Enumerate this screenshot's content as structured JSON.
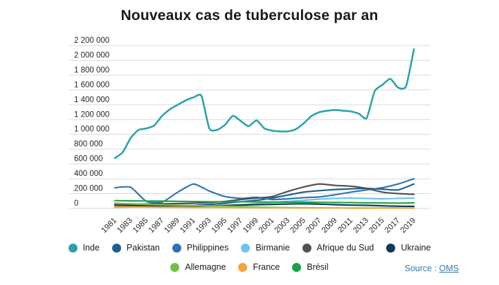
{
  "title": "Nouveaux cas de tuberculose par an",
  "source": {
    "prefix": "Source : ",
    "link_label": "OMS"
  },
  "chart_data": {
    "type": "line",
    "title": "Nouveaux cas de tuberculose par an",
    "xlabel": "",
    "ylabel": "",
    "ylim": [
      0,
      2200000
    ],
    "ytick_step": 200000,
    "ytick_labels": [
      "0",
      "200 000",
      "400 000",
      "600 000",
      "800 000",
      "1 000 000",
      "1 200 000",
      "1 400 000",
      "1 600 000",
      "1 800 000",
      "2 000 000",
      "2 200 000"
    ],
    "xtick_labels": [
      "1981",
      "1983",
      "1985",
      "1987",
      "1989",
      "1991",
      "1993",
      "1995",
      "1997",
      "1999",
      "2001",
      "2003",
      "2005",
      "2007",
      "2009",
      "2011",
      "2013",
      "2015",
      "2017",
      "2019"
    ],
    "grid": true,
    "legend_position": "bottom",
    "legend_rows": [
      6,
      3
    ],
    "series": [
      {
        "name": "Inde",
        "color": "#29a3a8",
        "x": [
          1981,
          1982,
          1983,
          1984,
          1985,
          1986,
          1987,
          1988,
          1989,
          1990,
          1991,
          1992,
          1993,
          1994,
          1995,
          1996,
          1997,
          1998,
          1999,
          2000,
          2001,
          2002,
          2003,
          2004,
          2005,
          2006,
          2007,
          2008,
          2009,
          2010,
          2011,
          2012,
          2013,
          2014,
          2015,
          2016,
          2017,
          2018,
          2019
        ],
        "values": [
          680000,
          760000,
          950000,
          1060000,
          1080000,
          1120000,
          1250000,
          1340000,
          1400000,
          1460000,
          1500000,
          1520000,
          1080000,
          1060000,
          1130000,
          1250000,
          1180000,
          1110000,
          1190000,
          1080000,
          1050000,
          1040000,
          1040000,
          1070000,
          1150000,
          1250000,
          1300000,
          1320000,
          1330000,
          1320000,
          1310000,
          1280000,
          1220000,
          1580000,
          1670000,
          1750000,
          1630000,
          1650000,
          2150000
        ]
      },
      {
        "name": "Pakistan",
        "color": "#1e5f8e",
        "x": [
          1981,
          1983,
          1985,
          1987,
          1989,
          1991,
          1993,
          1995,
          1997,
          1999,
          2001,
          2003,
          2005,
          2007,
          2009,
          2011,
          2013,
          2015,
          2017,
          2019
        ],
        "values": [
          55000,
          50000,
          35000,
          25000,
          30000,
          40000,
          55000,
          70000,
          90000,
          110000,
          140000,
          180000,
          220000,
          240000,
          255000,
          265000,
          270000,
          260000,
          250000,
          330000
        ]
      },
      {
        "name": "Philippines",
        "color": "#2e75b5",
        "x": [
          1981,
          1983,
          1985,
          1987,
          1989,
          1991,
          1993,
          1995,
          1997,
          1999,
          2001,
          2003,
          2005,
          2007,
          2009,
          2011,
          2013,
          2015,
          2017,
          2019
        ],
        "values": [
          280000,
          285000,
          95000,
          85000,
          220000,
          330000,
          235000,
          160000,
          135000,
          150000,
          120000,
          130000,
          145000,
          155000,
          185000,
          220000,
          250000,
          280000,
          330000,
          400000
        ]
      },
      {
        "name": "Birmanie",
        "color": "#6cc4ed",
        "x": [
          1981,
          1983,
          1985,
          1987,
          1989,
          1991,
          1993,
          1995,
          1997,
          1999,
          2001,
          2003,
          2005,
          2007,
          2009,
          2011,
          2013,
          2015,
          2017,
          2019
        ],
        "values": [
          15000,
          18000,
          20000,
          22000,
          25000,
          30000,
          35000,
          40000,
          50000,
          65000,
          80000,
          95000,
          110000,
          125000,
          135000,
          140000,
          135000,
          130000,
          135000,
          140000
        ]
      },
      {
        "name": "Afrique du Sud",
        "color": "#4d5257",
        "x": [
          1981,
          1983,
          1985,
          1987,
          1989,
          1991,
          1993,
          1995,
          1997,
          1999,
          2001,
          2003,
          2005,
          2007,
          2009,
          2011,
          2013,
          2015,
          2017,
          2019
        ],
        "values": [
          55000,
          58000,
          60000,
          62000,
          65000,
          70000,
          80000,
          95000,
          120000,
          140000,
          160000,
          230000,
          290000,
          330000,
          310000,
          300000,
          270000,
          220000,
          200000,
          190000
        ]
      },
      {
        "name": "Ukraine",
        "color": "#0e3a52",
        "x": [
          1981,
          1983,
          1985,
          1987,
          1989,
          1991,
          1993,
          1995,
          1997,
          1999,
          2001,
          2003,
          2005,
          2007,
          2009,
          2011,
          2013,
          2015,
          2017,
          2019
        ],
        "values": [
          35000,
          33000,
          32000,
          30000,
          28000,
          32000,
          35000,
          40000,
          45000,
          50000,
          55000,
          60000,
          62000,
          58000,
          50000,
          45000,
          42000,
          35000,
          30000,
          28000
        ]
      },
      {
        "name": "Allemagne",
        "color": "#72bf44",
        "x": [
          1981,
          1983,
          1985,
          1987,
          1989,
          1991,
          1993,
          1995,
          1997,
          1999,
          2001,
          2003,
          2005,
          2007,
          2009,
          2011,
          2013,
          2015,
          2017,
          2019
        ],
        "values": [
          70000,
          62000,
          55000,
          48000,
          42000,
          38000,
          35000,
          30000,
          25000,
          18000,
          14000,
          11000,
          9000,
          7000,
          6000,
          5000,
          5000,
          6000,
          6000,
          5000
        ]
      },
      {
        "name": "France",
        "color": "#f2a73b",
        "x": [
          1981,
          1983,
          1985,
          1987,
          1989,
          1991,
          1993,
          1995,
          1997,
          1999,
          2001,
          2003,
          2005,
          2007,
          2009,
          2011,
          2013,
          2015,
          2017,
          2019
        ],
        "values": [
          22000,
          20000,
          18000,
          16000,
          15000,
          13000,
          12000,
          11000,
          10000,
          9000,
          8000,
          7000,
          7000,
          6000,
          6000,
          5000,
          5000,
          5000,
          5000,
          5000
        ]
      },
      {
        "name": "Brésil",
        "color": "#1ca24a",
        "x": [
          1981,
          1983,
          1985,
          1987,
          1989,
          1991,
          1993,
          1995,
          1997,
          1999,
          2001,
          2003,
          2005,
          2007,
          2009,
          2011,
          2013,
          2015,
          2017,
          2019
        ],
        "values": [
          105000,
          102000,
          100000,
          98000,
          95000,
          92000,
          90000,
          90000,
          90000,
          88000,
          85000,
          85000,
          85000,
          82000,
          80000,
          78000,
          75000,
          73000,
          72000,
          75000
        ]
      }
    ],
    "colors": {
      "grid": "#d9d9d9",
      "axis_text": "#262626",
      "title_text": "#1a1a1a",
      "source_link": "#3579a8"
    }
  }
}
